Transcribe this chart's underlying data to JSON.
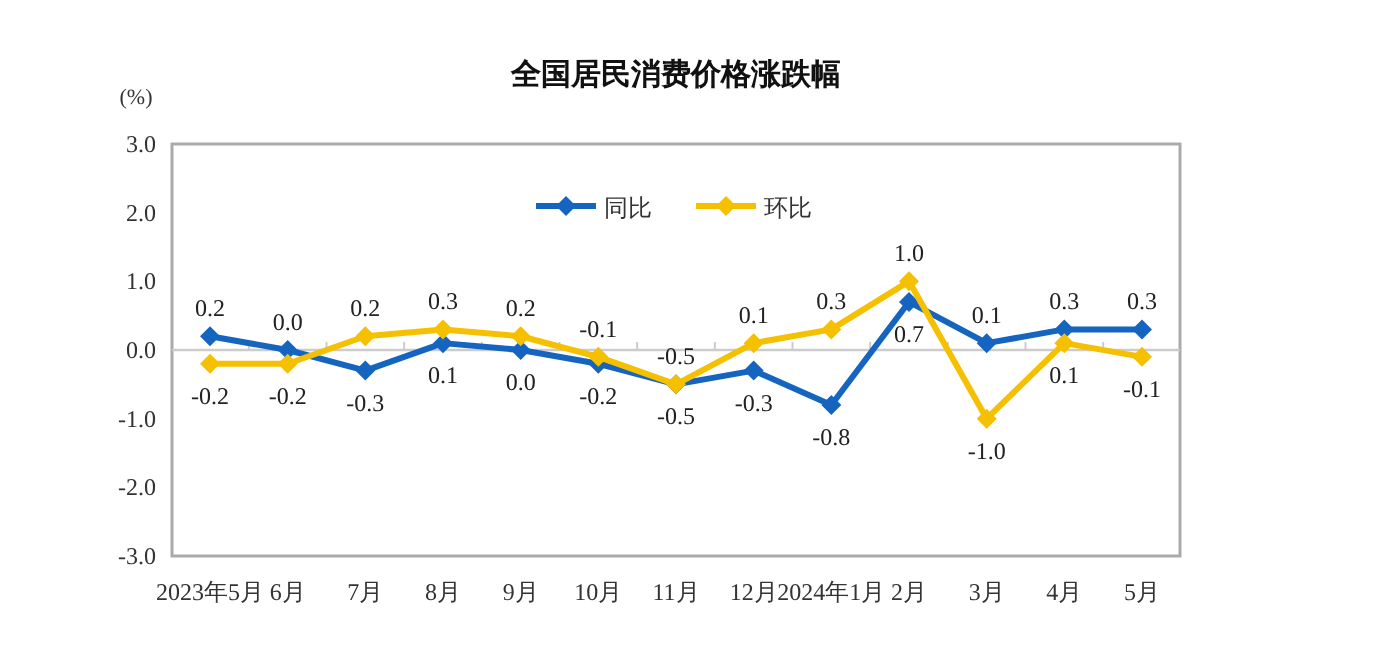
{
  "chart_data": {
    "type": "line",
    "title": "全国居民消费价格涨跌幅",
    "ylabel": "(%)",
    "categories": [
      "2023年5月",
      "6月",
      "7月",
      "8月",
      "9月",
      "10月",
      "11月",
      "12月",
      "2024年1月",
      "2月",
      "3月",
      "4月",
      "5月"
    ],
    "series": [
      {
        "name": "同比",
        "color": "#1565c0",
        "values": [
          0.2,
          0.0,
          -0.3,
          0.1,
          0.0,
          -0.2,
          -0.5,
          -0.3,
          -0.8,
          0.7,
          0.1,
          0.3,
          0.3
        ],
        "value_labels": [
          "0.2",
          "0.0",
          "-0.3",
          "0.1",
          "0.0",
          "-0.2",
          "-0.5",
          "-0.3",
          "-0.8",
          "0.7",
          "0.1",
          "0.3",
          "0.3"
        ]
      },
      {
        "name": "环比",
        "color": "#f5c000",
        "values": [
          -0.2,
          -0.2,
          0.2,
          0.3,
          0.2,
          -0.1,
          -0.5,
          0.1,
          0.3,
          1.0,
          -1.0,
          0.1,
          -0.1
        ],
        "value_labels": [
          "-0.2",
          "-0.2",
          "0.2",
          "0.3",
          "0.2",
          "-0.1",
          "-0.5",
          "0.1",
          "0.3",
          "1.0",
          "-1.0",
          "0.1",
          "-0.1"
        ]
      }
    ],
    "ylim": [
      -3.0,
      3.0
    ],
    "yticks": [
      {
        "value": 3,
        "label": "3.0"
      },
      {
        "value": 2,
        "label": "2.0"
      },
      {
        "value": 1,
        "label": "1.0"
      },
      {
        "value": 0,
        "label": "0.0"
      },
      {
        "value": -1,
        "label": "-1.0"
      },
      {
        "value": -2,
        "label": "-2.0"
      },
      {
        "value": -3,
        "label": "-3.0"
      }
    ],
    "ref_lines": [
      {
        "axis": "y",
        "value": 0,
        "color": "#cccccc"
      }
    ],
    "legend": "top",
    "marker": "diamond",
    "line_style": "solid"
  }
}
